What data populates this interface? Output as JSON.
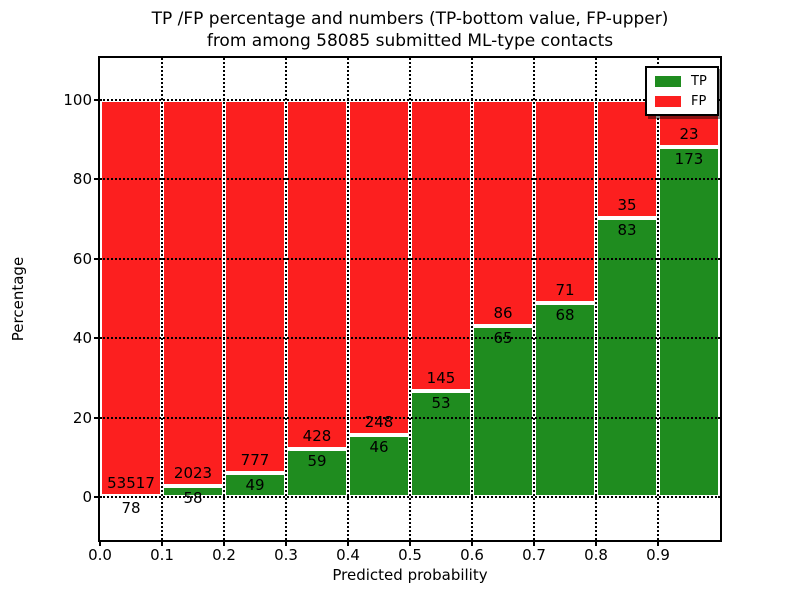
{
  "title": {
    "line1": "TP /FP percentage and numbers (TP-bottom value, FP-upper)",
    "line2": "from among 58085 submitted ML-type contacts"
  },
  "chart_data": {
    "type": "bar",
    "stacked": true,
    "title": "TP /FP percentage and numbers (TP-bottom value, FP-upper) from among 58085 submitted ML-type contacts",
    "xlabel": "Predicted probability",
    "ylabel": "Percentage",
    "total_contacts": 58085,
    "x_tick_labels": [
      "0.0",
      "0.1",
      "0.2",
      "0.3",
      "0.4",
      "0.5",
      "0.6",
      "0.7",
      "0.8",
      "0.9"
    ],
    "y_tick_values": [
      0,
      20,
      40,
      60,
      80,
      100
    ],
    "xlim": [
      0.0,
      1.0
    ],
    "ylim": [
      -10.8,
      109.6
    ],
    "grid": "dotted",
    "legend": {
      "position": "upper right",
      "entries": [
        {
          "label": "TP",
          "color": "#1f8c1f"
        },
        {
          "label": "FP",
          "color": "#fc1f1f"
        }
      ]
    },
    "colors": {
      "tp": "#1f8c1f",
      "fp": "#fc1f1f"
    },
    "bins": [
      {
        "range": [
          0.0,
          0.1
        ],
        "tp": 78,
        "fp": 53517
      },
      {
        "range": [
          0.1,
          0.2
        ],
        "tp": 58,
        "fp": 2023
      },
      {
        "range": [
          0.2,
          0.3
        ],
        "tp": 49,
        "fp": 777
      },
      {
        "range": [
          0.3,
          0.4
        ],
        "tp": 59,
        "fp": 428
      },
      {
        "range": [
          0.4,
          0.5
        ],
        "tp": 46,
        "fp": 248
      },
      {
        "range": [
          0.5,
          0.6
        ],
        "tp": 53,
        "fp": 145
      },
      {
        "range": [
          0.6,
          0.7
        ],
        "tp": 65,
        "fp": 86
      },
      {
        "range": [
          0.7,
          0.8
        ],
        "tp": 68,
        "fp": 71
      },
      {
        "range": [
          0.8,
          0.9
        ],
        "tp": 83,
        "fp": 35
      },
      {
        "range": [
          0.9,
          1.0
        ],
        "tp": 173,
        "fp": 23
      }
    ],
    "series": [
      {
        "name": "TP",
        "values": [
          78,
          58,
          49,
          59,
          46,
          53,
          65,
          68,
          83,
          173
        ]
      },
      {
        "name": "FP",
        "values": [
          53517,
          2023,
          777,
          428,
          248,
          145,
          86,
          71,
          35,
          23
        ]
      }
    ]
  }
}
